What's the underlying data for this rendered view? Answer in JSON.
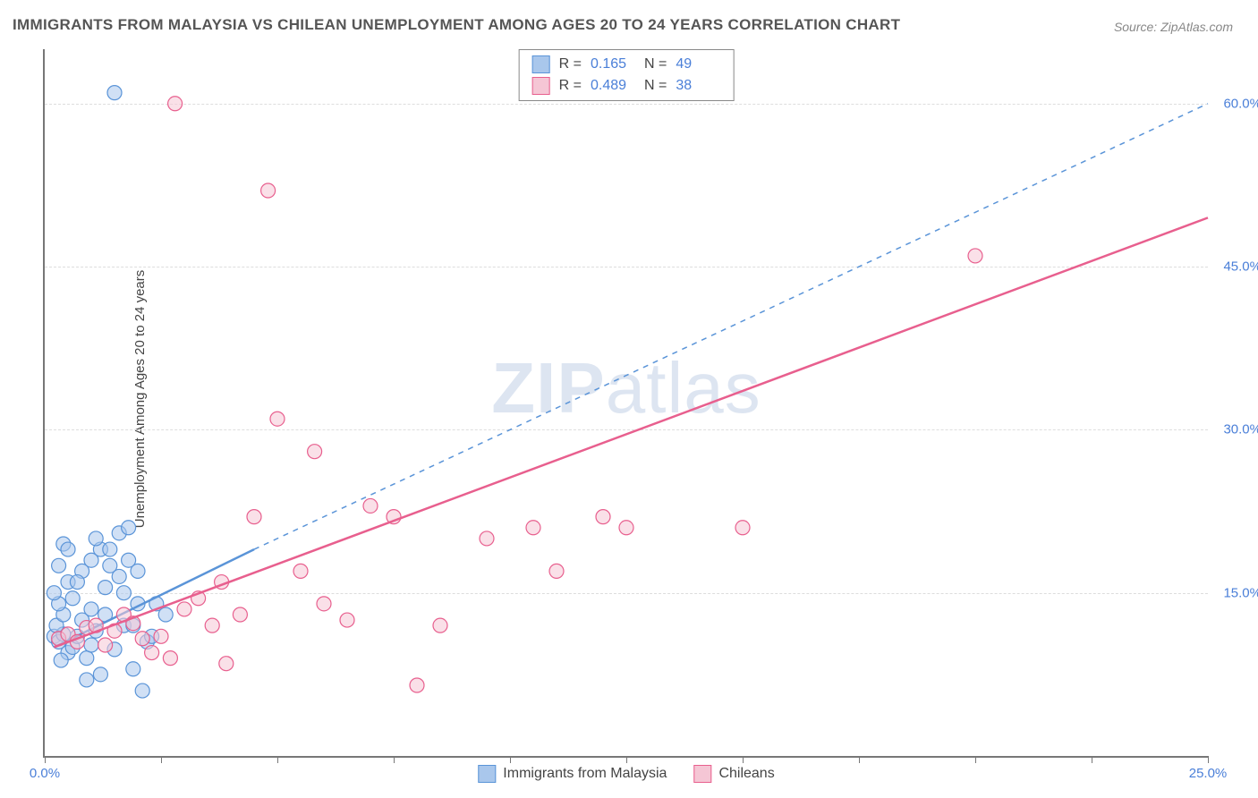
{
  "title": "IMMIGRANTS FROM MALAYSIA VS CHILEAN UNEMPLOYMENT AMONG AGES 20 TO 24 YEARS CORRELATION CHART",
  "source": "Source: ZipAtlas.com",
  "ylabel": "Unemployment Among Ages 20 to 24 years",
  "watermark": "ZIPatlas",
  "chart": {
    "type": "scatter",
    "xlim": [
      0,
      25
    ],
    "ylim": [
      0,
      65
    ],
    "xticks": [
      0,
      2.5,
      5,
      7.5,
      10,
      12.5,
      15,
      17.5,
      20,
      22.5,
      25
    ],
    "xtick_labels": {
      "0": "0.0%",
      "25": "25.0%"
    },
    "yticks": [
      15,
      30,
      45,
      60
    ],
    "ytick_labels": {
      "15": "15.0%",
      "30": "30.0%",
      "45": "45.0%",
      "60": "60.0%"
    },
    "grid_color": "#dddddd",
    "axis_color": "#777777",
    "background": "#ffffff",
    "series": [
      {
        "name": "Immigrants from Malaysia",
        "color_fill": "#a9c7ec",
        "color_stroke": "#5a94d8",
        "marker_radius": 8,
        "stats": {
          "R_label": "R =",
          "R": "0.165",
          "N_label": "N =",
          "N": "49"
        },
        "trend": {
          "x1": 0.2,
          "y1": 10,
          "x2": 4.5,
          "y2": 19,
          "dash_x2": 25,
          "dash_y2": 60,
          "width": 2.5
        },
        "points": [
          [
            0.2,
            11
          ],
          [
            0.3,
            10.5
          ],
          [
            0.4,
            11.2
          ],
          [
            0.25,
            12
          ],
          [
            0.5,
            9.5
          ],
          [
            0.6,
            10
          ],
          [
            0.4,
            13
          ],
          [
            0.8,
            12.5
          ],
          [
            0.3,
            14
          ],
          [
            0.7,
            11
          ],
          [
            0.9,
            9
          ],
          [
            1.0,
            10.2
          ],
          [
            0.2,
            15
          ],
          [
            0.5,
            16
          ],
          [
            0.35,
            8.8
          ],
          [
            1.1,
            11.5
          ],
          [
            1.3,
            13
          ],
          [
            0.6,
            14.5
          ],
          [
            1.5,
            9.8
          ],
          [
            1.7,
            12
          ],
          [
            0.8,
            17
          ],
          [
            1.0,
            18
          ],
          [
            1.2,
            19
          ],
          [
            0.4,
            19.5
          ],
          [
            1.6,
            20.5
          ],
          [
            1.8,
            21
          ],
          [
            1.4,
            17.5
          ],
          [
            2.0,
            14
          ],
          [
            2.2,
            10.5
          ],
          [
            2.4,
            14
          ],
          [
            1.9,
            8
          ],
          [
            1.2,
            7.5
          ],
          [
            0.9,
            7
          ],
          [
            2.6,
            13
          ],
          [
            1.5,
            61
          ],
          [
            2.1,
            6
          ],
          [
            1.1,
            20
          ],
          [
            0.5,
            19
          ],
          [
            1.3,
            15.5
          ],
          [
            1.6,
            16.5
          ],
          [
            1.8,
            18
          ],
          [
            2.3,
            11
          ],
          [
            1.0,
            13.5
          ],
          [
            0.7,
            16
          ],
          [
            0.3,
            17.5
          ],
          [
            1.4,
            19
          ],
          [
            1.7,
            15
          ],
          [
            2.0,
            17
          ],
          [
            1.9,
            12
          ]
        ]
      },
      {
        "name": "Chileans",
        "color_fill": "#f5c6d5",
        "color_stroke": "#e85f8e",
        "marker_radius": 8,
        "stats": {
          "R_label": "R =",
          "R": "0.489",
          "N_label": "N =",
          "N": "38"
        },
        "trend": {
          "x1": 0.2,
          "y1": 10,
          "x2": 25,
          "y2": 49.5,
          "width": 2.5
        },
        "points": [
          [
            0.3,
            10.8
          ],
          [
            0.5,
            11.2
          ],
          [
            0.7,
            10.5
          ],
          [
            0.9,
            11.8
          ],
          [
            1.1,
            12
          ],
          [
            1.3,
            10.2
          ],
          [
            1.5,
            11.5
          ],
          [
            1.7,
            13
          ],
          [
            1.9,
            12.2
          ],
          [
            2.1,
            10.8
          ],
          [
            2.3,
            9.5
          ],
          [
            2.5,
            11
          ],
          [
            2.8,
            60
          ],
          [
            3.0,
            13.5
          ],
          [
            3.3,
            14.5
          ],
          [
            3.6,
            12
          ],
          [
            3.9,
            8.5
          ],
          [
            4.2,
            13
          ],
          [
            4.5,
            22
          ],
          [
            4.8,
            52
          ],
          [
            5.0,
            31
          ],
          [
            5.5,
            17
          ],
          [
            5.8,
            28
          ],
          [
            6.0,
            14
          ],
          [
            6.5,
            12.5
          ],
          [
            7.0,
            23
          ],
          [
            7.5,
            22
          ],
          [
            8.0,
            6.5
          ],
          [
            8.5,
            12
          ],
          [
            9.5,
            20
          ],
          [
            10.5,
            21
          ],
          [
            11.0,
            17
          ],
          [
            12.0,
            22
          ],
          [
            12.5,
            21
          ],
          [
            15.0,
            21
          ],
          [
            20.0,
            46
          ],
          [
            2.7,
            9
          ],
          [
            3.8,
            16
          ]
        ]
      }
    ]
  }
}
